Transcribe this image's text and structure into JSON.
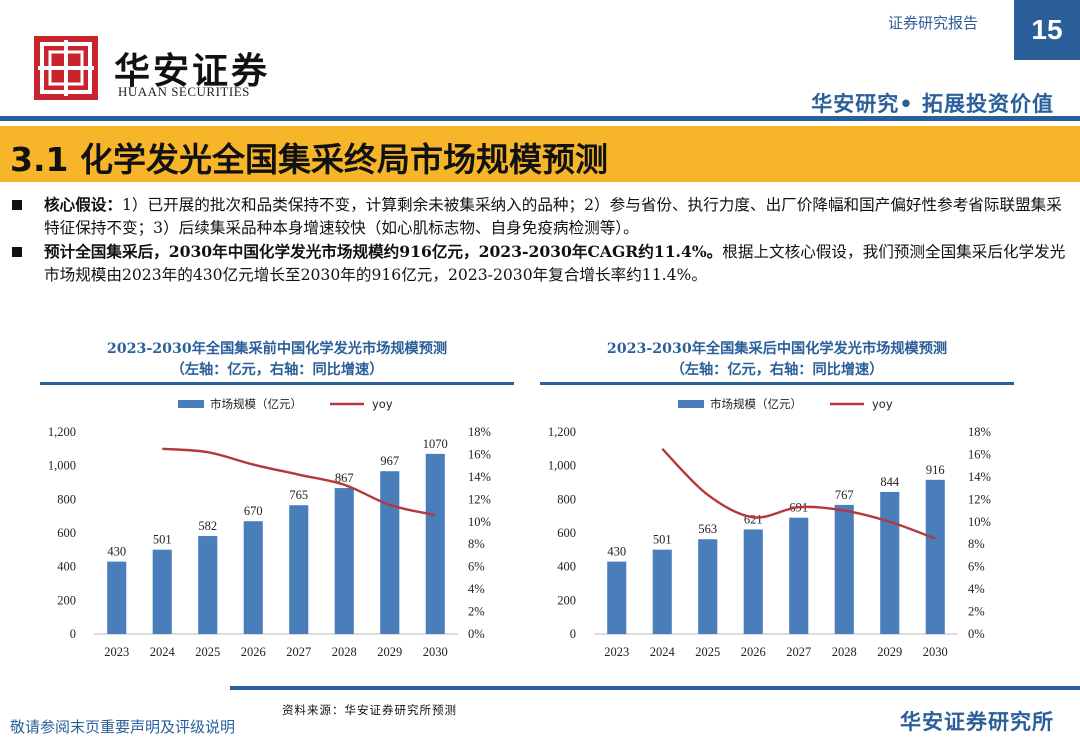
{
  "header": {
    "logo_cn": "华安证券",
    "logo_en": "HUAAN SECURITIES",
    "report_type": "证券研究报告",
    "page_number": "15",
    "slogan": "华安研究• 拓展投资价值"
  },
  "section_title": "3.1 化学发光全国集采终局市场规模预测",
  "bullets": [
    {
      "lead": "核心假设：",
      "text": "1）已开展的批次和品类保持不变，计算剩余未被集采纳入的品种；2）参与省份、执行力度、出厂价降幅和国产偏好性参考省际联盟集采特征保持不变；3）后续集采品种本身增速较快（如心肌标志物、自身免疫病检测等）。"
    },
    {
      "lead": "预计全国集采后，2030年中国化学发光市场规模约916亿元，2023-2030年CAGR约11.4%。",
      "text": "根据上文核心假设，我们预测全国集采后化学发光市场规模由2023年的430亿元增长至2030年的916亿元，2023-2030年复合增长率约11.4%。"
    }
  ],
  "colors": {
    "brand_blue": "#2b5f9a",
    "bar_blue": "#4a7ebb",
    "line_red": "#b23a3a",
    "title_bar": "#f7b52a",
    "logo_red": "#c8242d"
  },
  "chart_data": [
    {
      "type": "bar",
      "title_line1": "2023-2030年全国集采前中国化学发光市场规模预测",
      "title_line2": "（左轴：亿元，右轴：同比增速）",
      "categories": [
        "2023",
        "2024",
        "2025",
        "2026",
        "2027",
        "2028",
        "2029",
        "2030"
      ],
      "series": [
        {
          "name": "市场规模（亿元）",
          "type": "bar",
          "axis": "left",
          "values": [
            430,
            501,
            582,
            670,
            765,
            867,
            967,
            1070
          ]
        },
        {
          "name": "yoy",
          "type": "line",
          "axis": "right",
          "values": [
            null,
            16.5,
            16.2,
            15.1,
            14.2,
            13.3,
            11.5,
            10.6
          ]
        }
      ],
      "data_labels": [
        "430",
        "501",
        "582",
        "670",
        "765",
        "867",
        "967",
        "1070"
      ],
      "ylim_left": [
        0,
        1200
      ],
      "yticks_left": [
        "0",
        "200",
        "400",
        "600",
        "800",
        "1,000",
        "1,200"
      ],
      "ylim_right": [
        0,
        18
      ],
      "yticks_right": [
        "0%",
        "2%",
        "4%",
        "6%",
        "8%",
        "10%",
        "12%",
        "14%",
        "16%",
        "18%"
      ],
      "legend_position": "top-center",
      "grid": false
    },
    {
      "type": "bar",
      "title_line1": "2023-2030年全国集采后中国化学发光市场规模预测",
      "title_line2": "（左轴：亿元，右轴：同比增速）",
      "categories": [
        "2023",
        "2024",
        "2025",
        "2026",
        "2027",
        "2028",
        "2029",
        "2030"
      ],
      "series": [
        {
          "name": "市场规模（亿元）",
          "type": "bar",
          "axis": "left",
          "values": [
            430,
            501,
            563,
            621,
            691,
            767,
            844,
            916
          ]
        },
        {
          "name": "yoy",
          "type": "line",
          "axis": "right",
          "values": [
            null,
            16.5,
            12.4,
            10.4,
            11.3,
            11.0,
            10.0,
            8.5
          ]
        }
      ],
      "data_labels": [
        "430",
        "501",
        "563",
        "621",
        "691",
        "767",
        "844",
        "916"
      ],
      "ylim_left": [
        0,
        1200
      ],
      "yticks_left": [
        "0",
        "200",
        "400",
        "600",
        "800",
        "1,000",
        "1,200"
      ],
      "ylim_right": [
        0,
        18
      ],
      "yticks_right": [
        "0%",
        "2%",
        "4%",
        "6%",
        "8%",
        "10%",
        "12%",
        "14%",
        "16%",
        "18%"
      ],
      "legend_position": "top-center",
      "grid": false
    }
  ],
  "footer": {
    "source": "资料来源：华安证券研究所预测",
    "disclaimer": "敬请参阅末页重要声明及评级说明",
    "brand": "华安证券研究所"
  }
}
